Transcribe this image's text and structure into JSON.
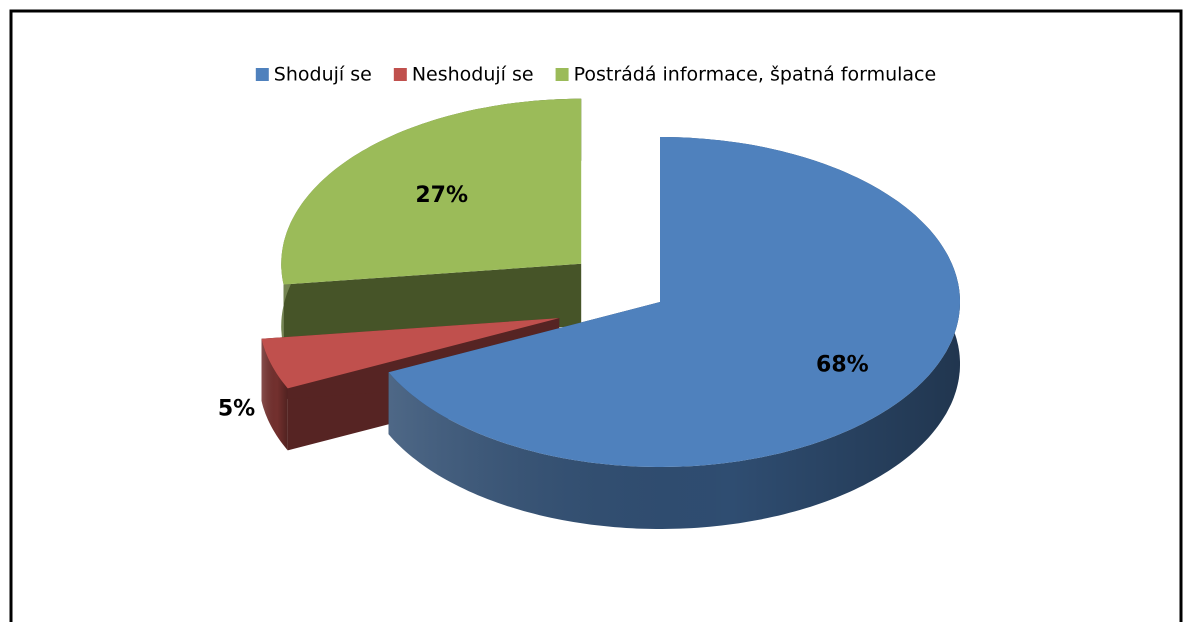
{
  "chart_data": {
    "type": "pie",
    "categories": [
      "Shodují se",
      "Neshodují se",
      "Postrádá informace, špatná formulace"
    ],
    "values": [
      68,
      5,
      27
    ],
    "value_labels": [
      "68%",
      "5%",
      "27%"
    ],
    "colors": [
      "#4f81bd",
      "#c0504d",
      "#9bbb59"
    ],
    "legend": "top",
    "exploded": [
      false,
      true,
      true
    ]
  }
}
